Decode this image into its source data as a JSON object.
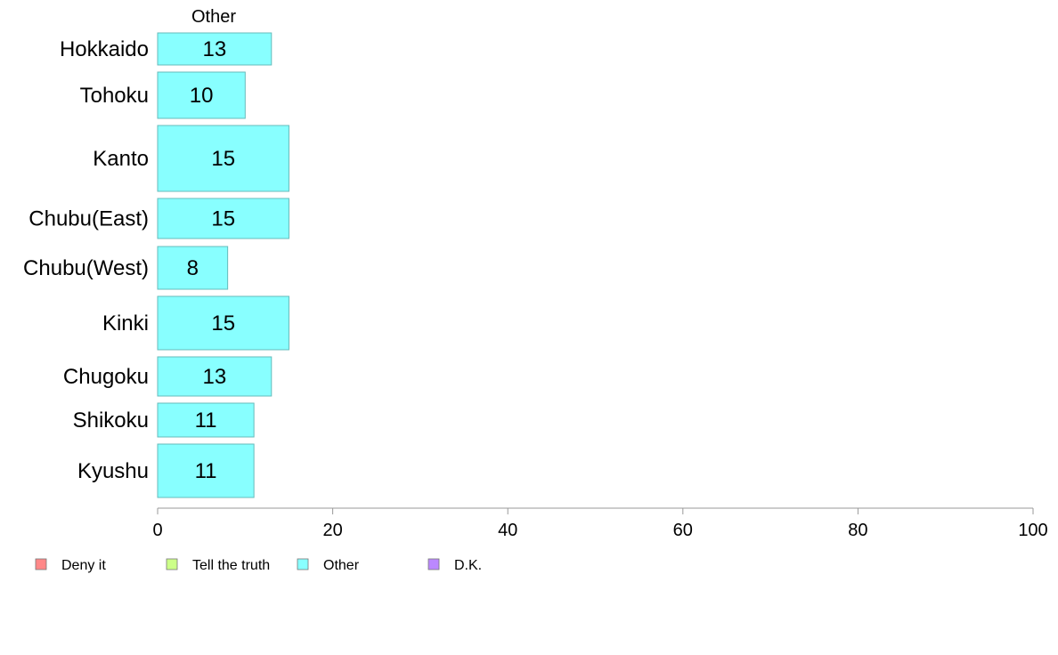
{
  "chart_data": {
    "type": "bar",
    "orientation": "horizontal",
    "panel_title": "Other",
    "categories": [
      "Hokkaido",
      "Tohoku",
      "Kanto",
      "Chubu(East)",
      "Chubu(West)",
      "Kinki",
      "Chugoku",
      "Shikoku",
      "Kyushu"
    ],
    "values": [
      13,
      10,
      15,
      15,
      8,
      15,
      13,
      11,
      11
    ],
    "xlim": [
      0,
      100
    ],
    "xticks": [
      0,
      20,
      40,
      60,
      80,
      100
    ],
    "xlabel": "",
    "ylabel": "",
    "bar_color": "#88ffff",
    "bar_stroke": "#66bbbb",
    "grid": false,
    "legend_position": "bottom",
    "legend": [
      {
        "label": "Deny it",
        "color": "#ff8888"
      },
      {
        "label": "Tell the truth",
        "color": "#ccff88"
      },
      {
        "label": "Other",
        "color": "#88ffff"
      },
      {
        "label": "D.K.",
        "color": "#bb88ff"
      }
    ]
  }
}
